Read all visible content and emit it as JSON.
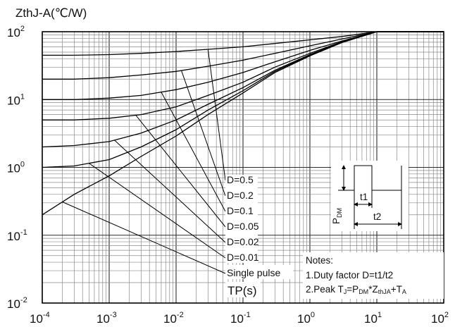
{
  "chart_data": {
    "type": "line",
    "title": "",
    "ylabel": "ZthJ-A(℃/W)",
    "xlabel": "TP(s)",
    "xscale": "log",
    "yscale": "log",
    "xlim": [
      0.0001,
      100
    ],
    "ylim": [
      0.01,
      100
    ],
    "grid": true,
    "x_ticks": [
      {
        "base": "10",
        "exp": "-4"
      },
      {
        "base": "10",
        "exp": "-3"
      },
      {
        "base": "10",
        "exp": "-2"
      },
      {
        "base": "10",
        "exp": "-1"
      },
      {
        "base": "10",
        "exp": "0"
      },
      {
        "base": "10",
        "exp": "1"
      },
      {
        "base": "10",
        "exp": "2"
      }
    ],
    "y_ticks": [
      {
        "base": "10",
        "exp": "-2"
      },
      {
        "base": "10",
        "exp": "-1"
      },
      {
        "base": "10",
        "exp": "0"
      },
      {
        "base": "10",
        "exp": "1"
      },
      {
        "base": "10",
        "exp": "2"
      }
    ],
    "series": [
      {
        "name": "D=0.5",
        "x": [
          0.0001,
          0.0003,
          0.001,
          0.003,
          0.01,
          0.03,
          0.1,
          0.3,
          1,
          3,
          10,
          100
        ],
        "y": [
          45,
          45,
          46,
          48,
          51,
          55,
          60,
          67,
          76,
          85,
          100,
          100
        ]
      },
      {
        "name": "D=0.2",
        "x": [
          0.0001,
          0.0003,
          0.001,
          0.003,
          0.01,
          0.03,
          0.1,
          0.3,
          1,
          3,
          10,
          100
        ],
        "y": [
          20,
          20,
          21,
          23,
          26,
          31,
          38,
          48,
          62,
          78,
          100,
          100
        ]
      },
      {
        "name": "D=0.1",
        "x": [
          0.0001,
          0.0003,
          0.001,
          0.003,
          0.01,
          0.03,
          0.1,
          0.3,
          1,
          3,
          10,
          100
        ],
        "y": [
          10,
          10,
          10.5,
          11.5,
          14,
          18,
          25,
          36,
          53,
          73,
          100,
          100
        ]
      },
      {
        "name": "D=0.05",
        "x": [
          0.0001,
          0.0003,
          0.001,
          0.003,
          0.01,
          0.03,
          0.1,
          0.3,
          1,
          3,
          10,
          100
        ],
        "y": [
          5,
          5,
          5.3,
          6,
          7.8,
          11.5,
          18,
          30,
          48,
          71,
          100,
          100
        ]
      },
      {
        "name": "D=0.02",
        "x": [
          0.0001,
          0.0003,
          0.001,
          0.003,
          0.01,
          0.03,
          0.1,
          0.3,
          1,
          3,
          10,
          100
        ],
        "y": [
          2,
          2.1,
          2.4,
          3.2,
          5,
          8.5,
          15,
          27,
          46,
          70,
          100,
          100
        ]
      },
      {
        "name": "D=0.01",
        "x": [
          0.0001,
          0.0003,
          0.001,
          0.003,
          0.01,
          0.03,
          0.1,
          0.3,
          1,
          3,
          10,
          100
        ],
        "y": [
          1,
          1.05,
          1.3,
          2,
          3.6,
          7,
          13.5,
          26,
          45,
          70,
          100,
          100
        ]
      },
      {
        "name": "Single pulse",
        "x": [
          0.0001,
          0.0003,
          0.001,
          0.003,
          0.01,
          0.03,
          0.1,
          0.3,
          1,
          3,
          10,
          100
        ],
        "y": [
          0.2,
          0.4,
          0.75,
          1.45,
          2.9,
          6,
          12.5,
          25,
          44,
          69,
          100,
          100
        ]
      }
    ],
    "annotations": {
      "labels": [
        "D=0.5",
        "D=0.2",
        "D=0.1",
        "D=0.05",
        "D=0.02",
        "D=0.01",
        "Single pulse"
      ],
      "notes_title": "Notes:",
      "note1": "1.Duty factor D=t1/t2",
      "note2_prefix": "2.Peak T",
      "note2_j": "J",
      "note2_eq": "=P",
      "note2_dm": "DM",
      "note2_star": "*Z",
      "note2_thja": "thJA",
      "note2_plus": "+T",
      "note2_a": "A",
      "inset_t1": "t1",
      "inset_t2": "t2",
      "inset_p": "P",
      "inset_dm": "DM"
    }
  }
}
